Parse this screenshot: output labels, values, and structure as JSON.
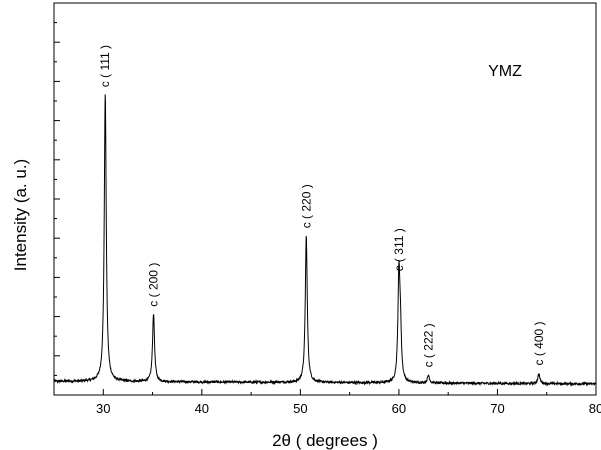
{
  "chart_data": {
    "type": "line",
    "title": "",
    "sample_label": "YMZ",
    "xlabel": "2θ ( degrees )",
    "ylabel": "Intensity (a. u.)",
    "xlim": [
      25,
      80
    ],
    "ylim": [
      0,
      100
    ],
    "xticks": [
      30,
      40,
      50,
      60,
      70,
      80
    ],
    "y_tick_labels_shown": false,
    "grid": false,
    "baseline": 3.5,
    "peaks": [
      {
        "label": "c ( 111 )",
        "x": 30.2,
        "y": 77
      },
      {
        "label": "c ( 200 )",
        "x": 35.1,
        "y": 21
      },
      {
        "label": "c ( 220 )",
        "x": 50.6,
        "y": 41
      },
      {
        "label": "c ( 311 )",
        "x": 60.0,
        "y": 30
      },
      {
        "label": "c ( 222 )",
        "x": 63.0,
        "y": 5.5
      },
      {
        "label": "c ( 400 )",
        "x": 74.2,
        "y": 6
      }
    ],
    "extra_peaks": [
      {
        "x": 60.15,
        "y": 15
      }
    ],
    "line_color": "#000000"
  }
}
